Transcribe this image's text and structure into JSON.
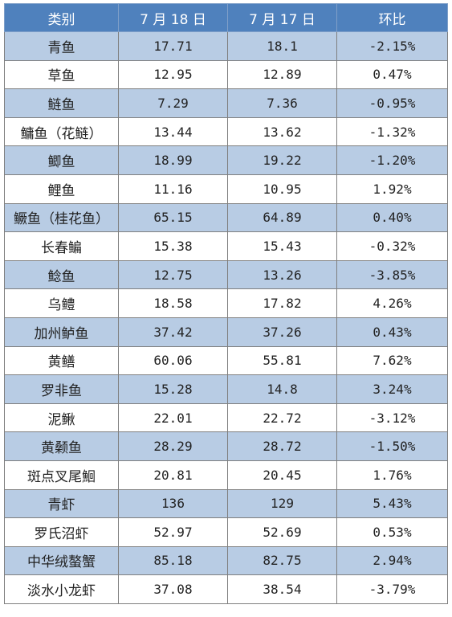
{
  "table": {
    "headers": [
      "类别",
      "7 月 18 日",
      "7 月 17 日",
      "环比"
    ],
    "rows": [
      [
        "青鱼",
        "17.71",
        "18.1",
        "-2.15%"
      ],
      [
        "草鱼",
        "12.95",
        "12.89",
        "0.47%"
      ],
      [
        "鲢鱼",
        "7.29",
        "7.36",
        "-0.95%"
      ],
      [
        "鳙鱼（花鲢）",
        "13.44",
        "13.62",
        "-1.32%"
      ],
      [
        "鲫鱼",
        "18.99",
        "19.22",
        "-1.20%"
      ],
      [
        "鲤鱼",
        "11.16",
        "10.95",
        "1.92%"
      ],
      [
        "鳜鱼（桂花鱼）",
        "65.15",
        "64.89",
        "0.40%"
      ],
      [
        "长春鳊",
        "15.38",
        "15.43",
        "-0.32%"
      ],
      [
        "鲶鱼",
        "12.75",
        "13.26",
        "-3.85%"
      ],
      [
        "乌鳢",
        "18.58",
        "17.82",
        "4.26%"
      ],
      [
        "加州鲈鱼",
        "37.42",
        "37.26",
        "0.43%"
      ],
      [
        "黄鳝",
        "60.06",
        "55.81",
        "7.62%"
      ],
      [
        "罗非鱼",
        "15.28",
        "14.8",
        "3.24%"
      ],
      [
        "泥鳅",
        "22.01",
        "22.72",
        "-3.12%"
      ],
      [
        "黄颡鱼",
        "28.29",
        "28.72",
        "-1.50%"
      ],
      [
        "斑点叉尾鮰",
        "20.81",
        "20.45",
        "1.76%"
      ],
      [
        "青虾",
        "136",
        "129",
        "5.43%"
      ],
      [
        "罗氏沼虾",
        "52.97",
        "52.69",
        "0.53%"
      ],
      [
        "中华绒螯蟹",
        "85.18",
        "82.75",
        "2.94%"
      ],
      [
        "淡水小龙虾",
        "37.08",
        "38.54",
        "-3.79%"
      ]
    ]
  },
  "colors": {
    "header_bg": "#4f81bd",
    "stripe_bg": "#b8cce4",
    "plain_bg": "#ffffff"
  }
}
